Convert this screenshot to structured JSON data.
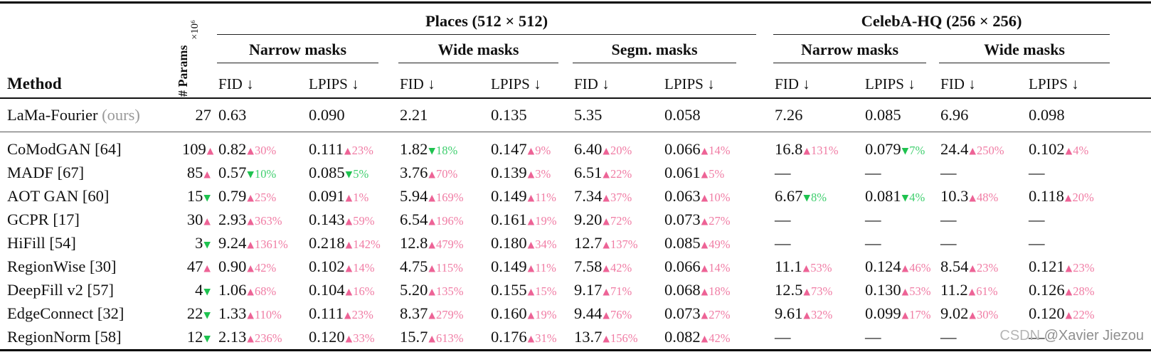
{
  "colors": {
    "worse_pink": "#ed6396",
    "worse_pink_light": "#f07ca4",
    "better_green": "#1ec24f",
    "better_green_light": "#3fcf6e",
    "ours_note_gray": "#999999",
    "rule_black": "#000000",
    "watermark_gray": "#8f8f8f"
  },
  "icons": {
    "up_triangle": "▲",
    "down_triangle": "▼",
    "dash": "—",
    "down_arrow": "↓"
  },
  "header": {
    "method_label": "Method",
    "params_label": "# Params",
    "params_scale": "×10⁶",
    "groups": [
      {
        "label": "Places (512 × 512)",
        "subgroups": [
          "Narrow masks",
          "Wide masks",
          "Segm. masks"
        ]
      },
      {
        "label": "CelebA-HQ (256 × 256)",
        "subgroups": [
          "Narrow masks",
          "Wide masks"
        ]
      }
    ],
    "metric_fid": "FID ↓",
    "metric_lpips": "LPIPS ↓"
  },
  "baseline": {
    "method": "LaMa-Fourier",
    "note": "(ours)",
    "params": "27",
    "values": [
      "0.63",
      "0.090",
      "2.21",
      "0.135",
      "5.35",
      "0.058",
      "7.26",
      "0.085",
      "6.96",
      "0.098"
    ]
  },
  "rows": [
    {
      "method": "CoModGAN [64]",
      "params": "109",
      "params_dir": "up",
      "cells": [
        {
          "v": "0.82",
          "d": "up",
          "p": "30%"
        },
        {
          "v": "0.111",
          "d": "up",
          "p": "23%"
        },
        {
          "v": "1.82",
          "d": "down",
          "p": "18%"
        },
        {
          "v": "0.147",
          "d": "up",
          "p": "9%"
        },
        {
          "v": "6.40",
          "d": "up",
          "p": "20%"
        },
        {
          "v": "0.066",
          "d": "up",
          "p": "14%"
        },
        {
          "v": "16.8",
          "d": "up",
          "p": "131%"
        },
        {
          "v": "0.079",
          "d": "down",
          "p": "7%"
        },
        {
          "v": "24.4",
          "d": "up",
          "p": "250%"
        },
        {
          "v": "0.102",
          "d": "up",
          "p": "4%"
        }
      ]
    },
    {
      "method": "MADF [67]",
      "params": "85",
      "params_dir": "up",
      "cells": [
        {
          "v": "0.57",
          "d": "down",
          "p": "10%"
        },
        {
          "v": "0.085",
          "d": "down",
          "p": "5%"
        },
        {
          "v": "3.76",
          "d": "up",
          "p": "70%"
        },
        {
          "v": "0.139",
          "d": "up",
          "p": "3%"
        },
        {
          "v": "6.51",
          "d": "up",
          "p": "22%"
        },
        {
          "v": "0.061",
          "d": "up",
          "p": "5%"
        },
        null,
        null,
        null,
        null
      ]
    },
    {
      "method": "AOT GAN [60]",
      "params": "15",
      "params_dir": "down",
      "cells": [
        {
          "v": "0.79",
          "d": "up",
          "p": "25%"
        },
        {
          "v": "0.091",
          "d": "up",
          "p": "1%"
        },
        {
          "v": "5.94",
          "d": "up",
          "p": "169%"
        },
        {
          "v": "0.149",
          "d": "up",
          "p": "11%"
        },
        {
          "v": "7.34",
          "d": "up",
          "p": "37%"
        },
        {
          "v": "0.063",
          "d": "up",
          "p": "10%"
        },
        {
          "v": "6.67",
          "d": "down",
          "p": "8%"
        },
        {
          "v": "0.081",
          "d": "down",
          "p": "4%"
        },
        {
          "v": "10.3",
          "d": "up",
          "p": "48%"
        },
        {
          "v": "0.118",
          "d": "up",
          "p": "20%"
        }
      ]
    },
    {
      "method": "GCPR [17]",
      "params": "30",
      "params_dir": "up",
      "cells": [
        {
          "v": "2.93",
          "d": "up",
          "p": "363%"
        },
        {
          "v": "0.143",
          "d": "up",
          "p": "59%"
        },
        {
          "v": "6.54",
          "d": "up",
          "p": "196%"
        },
        {
          "v": "0.161",
          "d": "up",
          "p": "19%"
        },
        {
          "v": "9.20",
          "d": "up",
          "p": "72%"
        },
        {
          "v": "0.073",
          "d": "up",
          "p": "27%"
        },
        null,
        null,
        null,
        null
      ]
    },
    {
      "method": "HiFill [54]",
      "params": "3",
      "params_dir": "down",
      "cells": [
        {
          "v": "9.24",
          "d": "up",
          "p": "1361%"
        },
        {
          "v": "0.218",
          "d": "up",
          "p": "142%"
        },
        {
          "v": "12.8",
          "d": "up",
          "p": "479%"
        },
        {
          "v": "0.180",
          "d": "up",
          "p": "34%"
        },
        {
          "v": "12.7",
          "d": "up",
          "p": "137%"
        },
        {
          "v": "0.085",
          "d": "up",
          "p": "49%"
        },
        null,
        null,
        null,
        null
      ]
    },
    {
      "method": "RegionWise [30]",
      "params": "47",
      "params_dir": "up",
      "cells": [
        {
          "v": "0.90",
          "d": "up",
          "p": "42%"
        },
        {
          "v": "0.102",
          "d": "up",
          "p": "14%"
        },
        {
          "v": "4.75",
          "d": "up",
          "p": "115%"
        },
        {
          "v": "0.149",
          "d": "up",
          "p": "11%"
        },
        {
          "v": "7.58",
          "d": "up",
          "p": "42%"
        },
        {
          "v": "0.066",
          "d": "up",
          "p": "14%"
        },
        {
          "v": "11.1",
          "d": "up",
          "p": "53%"
        },
        {
          "v": "0.124",
          "d": "up",
          "p": "46%"
        },
        {
          "v": "8.54",
          "d": "up",
          "p": "23%"
        },
        {
          "v": "0.121",
          "d": "up",
          "p": "23%"
        }
      ]
    },
    {
      "method": "DeepFill v2 [57]",
      "params": "4",
      "params_dir": "down",
      "cells": [
        {
          "v": "1.06",
          "d": "up",
          "p": "68%"
        },
        {
          "v": "0.104",
          "d": "up",
          "p": "16%"
        },
        {
          "v": "5.20",
          "d": "up",
          "p": "135%"
        },
        {
          "v": "0.155",
          "d": "up",
          "p": "15%"
        },
        {
          "v": "9.17",
          "d": "up",
          "p": "71%"
        },
        {
          "v": "0.068",
          "d": "up",
          "p": "18%"
        },
        {
          "v": "12.5",
          "d": "up",
          "p": "73%"
        },
        {
          "v": "0.130",
          "d": "up",
          "p": "53%"
        },
        {
          "v": "11.2",
          "d": "up",
          "p": "61%"
        },
        {
          "v": "0.126",
          "d": "up",
          "p": "28%"
        }
      ]
    },
    {
      "method": "EdgeConnect [32]",
      "params": "22",
      "params_dir": "down",
      "cells": [
        {
          "v": "1.33",
          "d": "up",
          "p": "110%"
        },
        {
          "v": "0.111",
          "d": "up",
          "p": "23%"
        },
        {
          "v": "8.37",
          "d": "up",
          "p": "279%"
        },
        {
          "v": "0.160",
          "d": "up",
          "p": "19%"
        },
        {
          "v": "9.44",
          "d": "up",
          "p": "76%"
        },
        {
          "v": "0.073",
          "d": "up",
          "p": "27%"
        },
        {
          "v": "9.61",
          "d": "up",
          "p": "32%"
        },
        {
          "v": "0.099",
          "d": "up",
          "p": "17%"
        },
        {
          "v": "9.02",
          "d": "up",
          "p": "30%"
        },
        {
          "v": "0.120",
          "d": "up",
          "p": "22%"
        }
      ]
    },
    {
      "method": "RegionNorm [58]",
      "params": "12",
      "params_dir": "down",
      "cells": [
        {
          "v": "2.13",
          "d": "up",
          "p": "236%"
        },
        {
          "v": "0.120",
          "d": "up",
          "p": "33%"
        },
        {
          "v": "15.7",
          "d": "up",
          "p": "613%"
        },
        {
          "v": "0.176",
          "d": "up",
          "p": "31%"
        },
        {
          "v": "13.7",
          "d": "up",
          "p": "156%"
        },
        {
          "v": "0.082",
          "d": "up",
          "p": "42%"
        },
        null,
        null,
        null,
        null
      ]
    }
  ],
  "watermark": {
    "brand": "CSDN ",
    "user": "@Xavier Jiezou"
  }
}
